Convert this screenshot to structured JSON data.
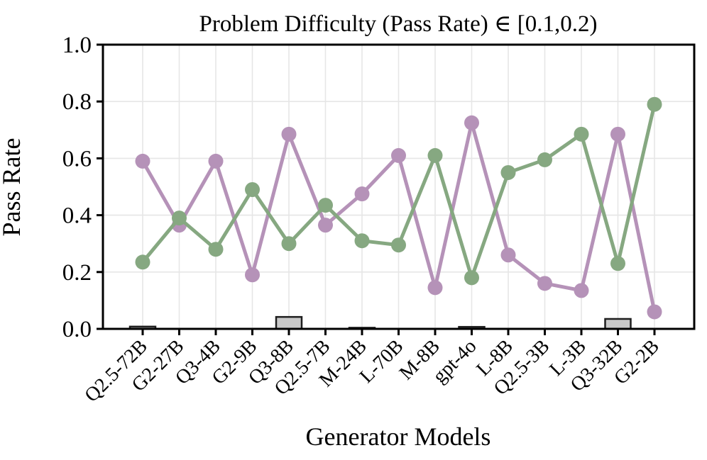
{
  "chart_data": {
    "type": "line",
    "title": "Problem Difficulty (Pass Rate) ∈ [0.1,0.2)",
    "xlabel": "Generator Models",
    "ylabel": "Pass Rate",
    "ylim": [
      0.0,
      1.0
    ],
    "yticks": [
      0.0,
      0.2,
      0.4,
      0.6,
      0.8,
      1.0
    ],
    "grid": true,
    "legend_position": "none",
    "categories": [
      "Q2.5-72B",
      "G2-27B",
      "Q3-4B",
      "G2-9B",
      "Q3-8B",
      "Q2.5-7B",
      "M-24B",
      "L-70B",
      "M-8B",
      "gpt-4o",
      "L-8B",
      "Q2.5-3B",
      "L-3B",
      "Q3-32B",
      "G2-2B"
    ],
    "series": [
      {
        "name": "purple-line-series",
        "type": "line",
        "color": "#b592b8",
        "values": [
          0.59,
          0.365,
          0.59,
          0.19,
          0.685,
          0.365,
          0.475,
          0.61,
          0.145,
          0.725,
          0.26,
          0.16,
          0.135,
          0.685,
          0.06
        ]
      },
      {
        "name": "green-line-series",
        "type": "line",
        "color": "#86a881",
        "values": [
          0.235,
          0.39,
          0.28,
          0.49,
          0.3,
          0.435,
          0.31,
          0.295,
          0.61,
          0.18,
          0.55,
          0.595,
          0.685,
          0.23,
          0.79
        ]
      },
      {
        "name": "gray-bar-series",
        "type": "bar",
        "color": "#c9c9c9",
        "edge_color": "#1f1f1f",
        "values": [
          0.008,
          0,
          0,
          0,
          0.042,
          0,
          0.004,
          0,
          0,
          0.007,
          0,
          0,
          0,
          0.035,
          0
        ]
      }
    ],
    "style": {
      "grid_color": "#e6e6e6",
      "spine_color": "#000000",
      "background": "#ffffff"
    }
  }
}
